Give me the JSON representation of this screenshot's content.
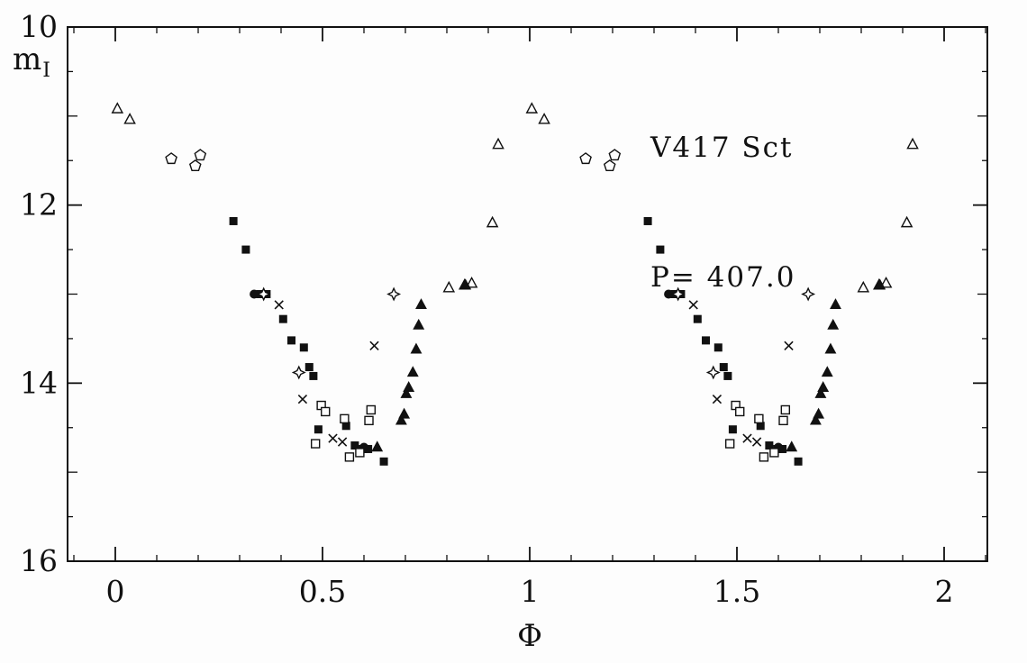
{
  "axes": {
    "x_label": "Φ",
    "y_label_main": "m",
    "y_label_sub": "I",
    "x_ticks": [
      {
        "value": 0,
        "label": "0"
      },
      {
        "value": 0.5,
        "label": "0.5"
      },
      {
        "value": 1,
        "label": "1"
      },
      {
        "value": 1.5,
        "label": "1.5"
      },
      {
        "value": 2,
        "label": "2"
      }
    ],
    "y_ticks": [
      {
        "value": 10,
        "label": "10"
      },
      {
        "value": 12,
        "label": "12"
      },
      {
        "value": 14,
        "label": "14"
      },
      {
        "value": 16,
        "label": "16"
      }
    ]
  },
  "chart_data": {
    "type": "scatter",
    "title": "V417 Sct",
    "period_label": "P= 407.0",
    "xlabel": "Φ",
    "ylabel": "m_I",
    "x_range": [
      0,
      2
    ],
    "y_range_mag": [
      16,
      10
    ],
    "y_axis_inverted": true,
    "grid": false,
    "legend": "none",
    "note": "Phased light curve; every point is plotted at phase Φ and Φ+1",
    "ink_color": "#111111",
    "background_color": "#fdfdfd",
    "series": [
      {
        "name": "open-triangles",
        "symbol": "triangle-open",
        "points": [
          [
            0.005,
            10.92
          ],
          [
            0.035,
            11.04
          ],
          [
            0.805,
            12.93
          ],
          [
            0.843,
            12.9
          ],
          [
            0.86,
            12.88
          ],
          [
            0.91,
            12.2
          ],
          [
            0.924,
            11.32
          ]
        ]
      },
      {
        "name": "open-pentagons",
        "symbol": "pentagon-open",
        "points": [
          [
            0.135,
            11.48
          ],
          [
            0.193,
            11.56
          ],
          [
            0.205,
            11.44
          ]
        ]
      },
      {
        "name": "filled-squares",
        "symbol": "square-filled",
        "points": [
          [
            0.285,
            12.18
          ],
          [
            0.315,
            12.5
          ],
          [
            0.35,
            13.0
          ],
          [
            0.365,
            13.0
          ],
          [
            0.405,
            13.28
          ],
          [
            0.425,
            13.52
          ],
          [
            0.455,
            13.6
          ],
          [
            0.468,
            13.82
          ],
          [
            0.478,
            13.92
          ],
          [
            0.49,
            14.52
          ],
          [
            0.557,
            14.48
          ],
          [
            0.578,
            14.7
          ],
          [
            0.597,
            14.74
          ],
          [
            0.61,
            14.74
          ],
          [
            0.648,
            14.88
          ]
        ]
      },
      {
        "name": "filled-circles",
        "symbol": "circle-filled",
        "points": [
          [
            0.335,
            13.0
          ],
          [
            0.6,
            14.72
          ]
        ]
      },
      {
        "name": "crosses",
        "symbol": "cross",
        "points": [
          [
            0.395,
            13.12
          ],
          [
            0.452,
            14.18
          ],
          [
            0.525,
            14.62
          ],
          [
            0.548,
            14.66
          ],
          [
            0.625,
            13.58
          ]
        ]
      },
      {
        "name": "open-stars",
        "symbol": "star4-open",
        "points": [
          [
            0.358,
            13.0
          ],
          [
            0.443,
            13.88
          ],
          [
            0.672,
            13.0
          ]
        ]
      },
      {
        "name": "open-squares",
        "symbol": "square-open",
        "points": [
          [
            0.483,
            14.68
          ],
          [
            0.497,
            14.25
          ],
          [
            0.507,
            14.32
          ],
          [
            0.553,
            14.4
          ],
          [
            0.565,
            14.83
          ],
          [
            0.59,
            14.78
          ],
          [
            0.612,
            14.42
          ],
          [
            0.617,
            14.3
          ]
        ]
      },
      {
        "name": "filled-triangles",
        "symbol": "triangle-filled",
        "points": [
          [
            0.632,
            14.72
          ],
          [
            0.69,
            14.42
          ],
          [
            0.697,
            14.35
          ],
          [
            0.702,
            14.12
          ],
          [
            0.708,
            14.05
          ],
          [
            0.718,
            13.88
          ],
          [
            0.726,
            13.62
          ],
          [
            0.732,
            13.35
          ],
          [
            0.738,
            13.12
          ],
          [
            0.845,
            12.9
          ]
        ]
      }
    ]
  }
}
